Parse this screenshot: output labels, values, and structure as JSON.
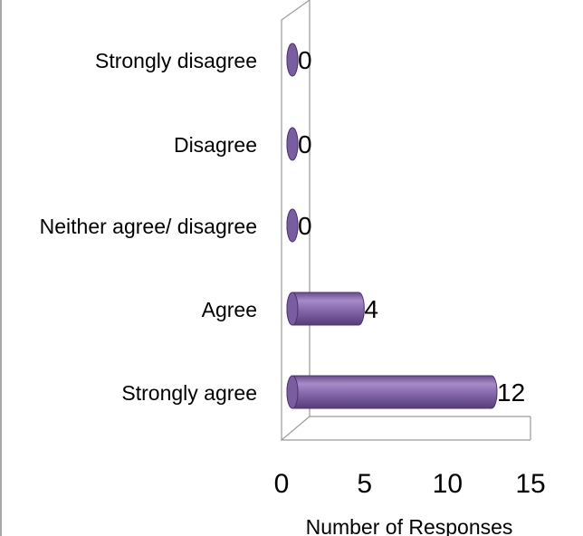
{
  "chart_data": {
    "type": "bar",
    "orientation": "horizontal",
    "categories": [
      "Strongly disagree",
      "Disagree",
      "Neither agree/ disagree",
      "Agree",
      "Strongly agree"
    ],
    "values": [
      0,
      0,
      0,
      4,
      12
    ],
    "data_labels": [
      "0",
      "0",
      "0",
      "4",
      "12"
    ],
    "xlabel": "Number of Responses",
    "xlim": [
      0,
      15
    ],
    "xticks": [
      "0",
      "5",
      "10",
      "15"
    ],
    "bar_color": "#8064a2",
    "bar_shape": "cylinder",
    "grid": false
  }
}
